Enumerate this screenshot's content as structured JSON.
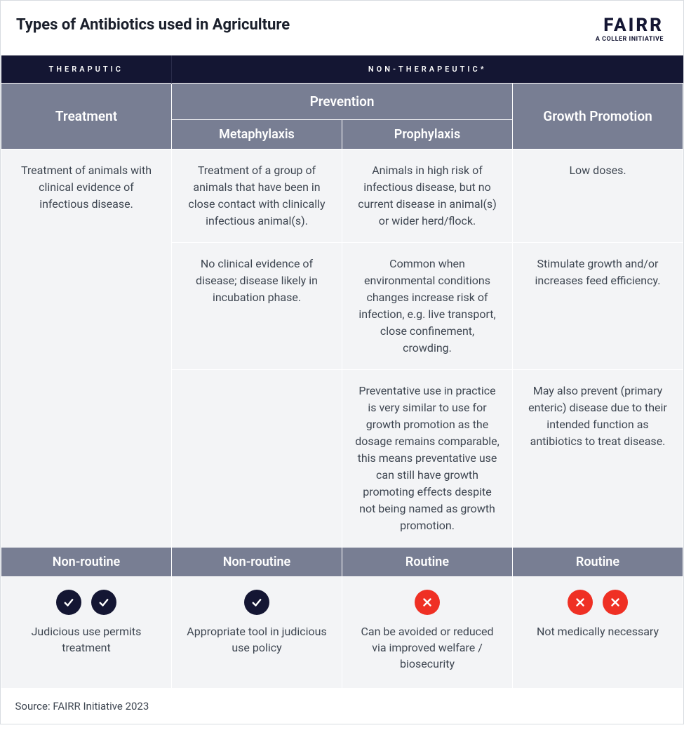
{
  "header": {
    "title": "Types of Antibiotics used in Agriculture",
    "logo_main": "FAIRR",
    "logo_sub": "A COLLER INITIATIVE"
  },
  "colors": {
    "navy": "#141633",
    "slate": "#787e93",
    "cell_bg": "#f3f4f6",
    "text": "#3e4651",
    "check_bg": "#141633",
    "cross_bg": "#ef3024",
    "border_light": "#ffffff",
    "border_outer": "#d8dbe0"
  },
  "categories": {
    "therapeutic": "THERAPUTIC",
    "non_therapeutic": "NON-THERAPEUTIC*"
  },
  "columns": {
    "treatment": "Treatment",
    "prevention": "Prevention",
    "metaphylaxis": "Metaphylaxis",
    "prophylaxis": "Prophylaxis",
    "growth": "Growth Promotion"
  },
  "body": {
    "treatment_r1": "Treatment of animals with clinical evidence of infectious disease.",
    "meta_r1": "Treatment of a group of animals that have been in close contact with clinically infectious animal(s).",
    "proph_r1": "Animals in high risk of infectious disease, but no current disease in animal(s) or wider herd/flock.",
    "growth_r1": "Low doses.",
    "meta_r2": "No clinical evidence of disease; disease likely in incubation phase.",
    "proph_r2": "Common when environmental conditions changes increase risk of infection, e.g. live transport, close confinement, crowding.",
    "growth_r2": "Stimulate growth and/or increases feed efficiency.",
    "proph_r3": "Preventative use in practice is very similar to use for growth promotion as the dosage remains comparable, this means preventative use can still have growth promoting effects despite not being named as growth promotion.",
    "growth_r3": "May also prevent (primary enteric) disease due to their intended function as antibiotics to treat disease."
  },
  "routine": {
    "c1": "Non-routine",
    "c2": "Non-routine",
    "c3": "Routine",
    "c4": "Routine"
  },
  "verdicts": {
    "c1": {
      "icons": [
        "check",
        "check"
      ],
      "text": "Judicious use permits treatment"
    },
    "c2": {
      "icons": [
        "check"
      ],
      "text": "Appropriate tool in judicious use policy"
    },
    "c3": {
      "icons": [
        "cross"
      ],
      "text": "Can be avoided or reduced via improved welfare / biosecurity"
    },
    "c4": {
      "icons": [
        "cross",
        "cross"
      ],
      "text": "Not medically necessary"
    }
  },
  "source": "Source: FAIRR Initiative 2023"
}
